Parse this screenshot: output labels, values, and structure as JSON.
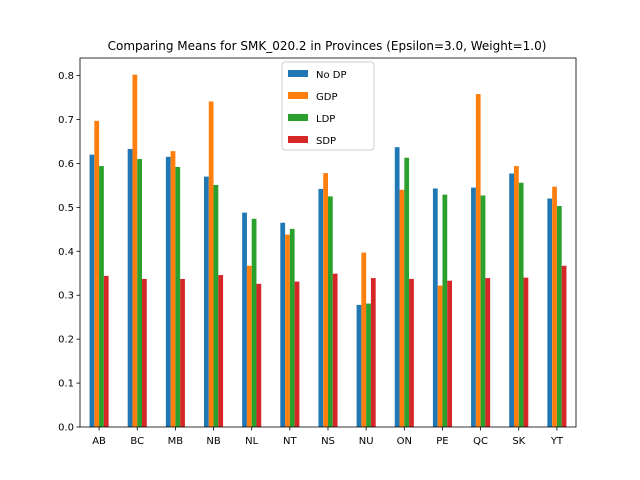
{
  "chart_data": {
    "type": "bar",
    "title": "Comparing Means for SMK_020.2 in Provinces (Epsilon=3.0, Weight=1.0)",
    "xlabel": "",
    "ylabel": "",
    "ylim": [
      0,
      0.84
    ],
    "yticks": [
      0.0,
      0.1,
      0.2,
      0.3,
      0.4,
      0.5,
      0.6,
      0.7,
      0.8
    ],
    "ytick_labels": [
      "0.0",
      "0.1",
      "0.2",
      "0.3",
      "0.4",
      "0.5",
      "0.6",
      "0.7",
      "0.8"
    ],
    "grid": false,
    "legend_position": "top-center",
    "categories": [
      "AB",
      "BC",
      "MB",
      "NB",
      "NL",
      "NT",
      "NS",
      "NU",
      "ON",
      "PE",
      "QC",
      "SK",
      "YT"
    ],
    "series": [
      {
        "name": "No DP",
        "color": "#1f77b4",
        "values": [
          0.62,
          0.633,
          0.615,
          0.57,
          0.488,
          0.465,
          0.542,
          0.278,
          0.637,
          0.543,
          0.545,
          0.577,
          0.52
        ]
      },
      {
        "name": "GDP",
        "color": "#ff7f0e",
        "values": [
          0.697,
          0.802,
          0.628,
          0.741,
          0.367,
          0.438,
          0.578,
          0.397,
          0.54,
          0.322,
          0.758,
          0.594,
          0.547
        ]
      },
      {
        "name": "LDP",
        "color": "#2ca02c",
        "values": [
          0.594,
          0.61,
          0.592,
          0.551,
          0.474,
          0.451,
          0.525,
          0.281,
          0.613,
          0.529,
          0.527,
          0.556,
          0.503
        ]
      },
      {
        "name": "SDP",
        "color": "#d62728",
        "values": [
          0.344,
          0.337,
          0.337,
          0.346,
          0.326,
          0.331,
          0.349,
          0.339,
          0.337,
          0.333,
          0.339,
          0.34,
          0.367
        ]
      }
    ]
  }
}
